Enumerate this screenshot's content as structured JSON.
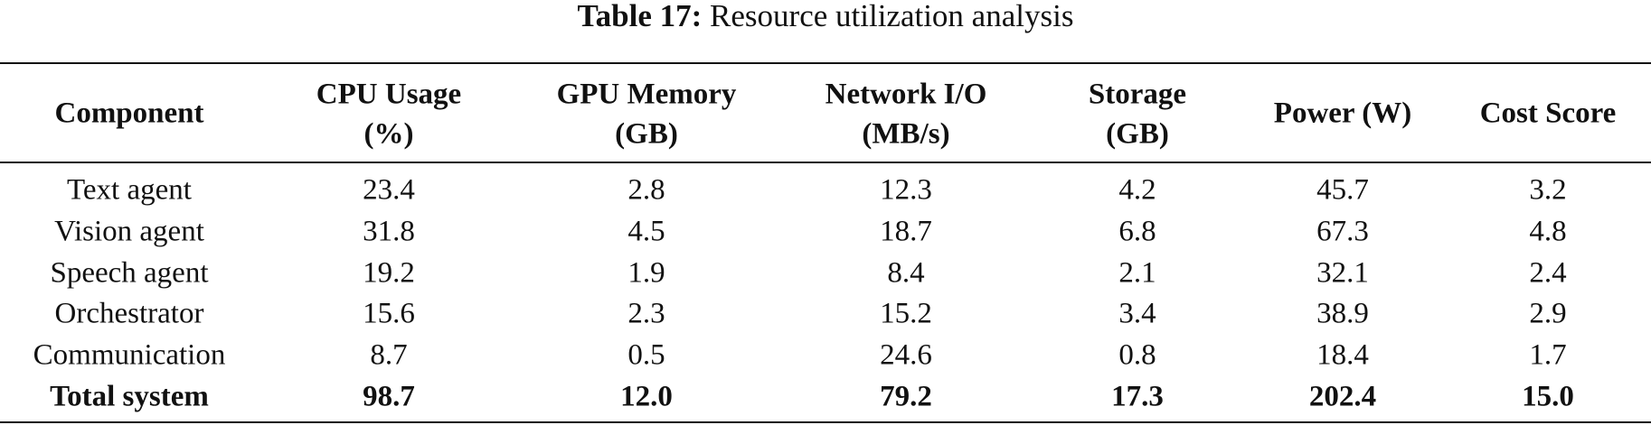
{
  "caption": {
    "label": "Table 17:",
    "text": "Resource utilization analysis"
  },
  "table": {
    "header": [
      [
        "Component"
      ],
      [
        "CPU Usage",
        "(%)"
      ],
      [
        "GPU Memory",
        "(GB)"
      ],
      [
        "Network I/O",
        "(MB/s)"
      ],
      [
        "Storage",
        "(GB)"
      ],
      [
        "Power (W)"
      ],
      [
        "Cost Score"
      ]
    ],
    "rows": [
      [
        "Text agent",
        "23.4",
        "2.8",
        "12.3",
        "4.2",
        "45.7",
        "3.2"
      ],
      [
        "Vision agent",
        "31.8",
        "4.5",
        "18.7",
        "6.8",
        "67.3",
        "4.8"
      ],
      [
        "Speech agent",
        "19.2",
        "1.9",
        "8.4",
        "2.1",
        "32.1",
        "2.4"
      ],
      [
        "Orchestrator",
        "15.6",
        "2.3",
        "15.2",
        "3.4",
        "38.9",
        "2.9"
      ],
      [
        "Communication",
        "8.7",
        "0.5",
        "24.6",
        "0.8",
        "18.4",
        "1.7"
      ],
      [
        "Total system",
        "98.7",
        "12.0",
        "79.2",
        "17.3",
        "202.4",
        "15.0"
      ]
    ]
  }
}
